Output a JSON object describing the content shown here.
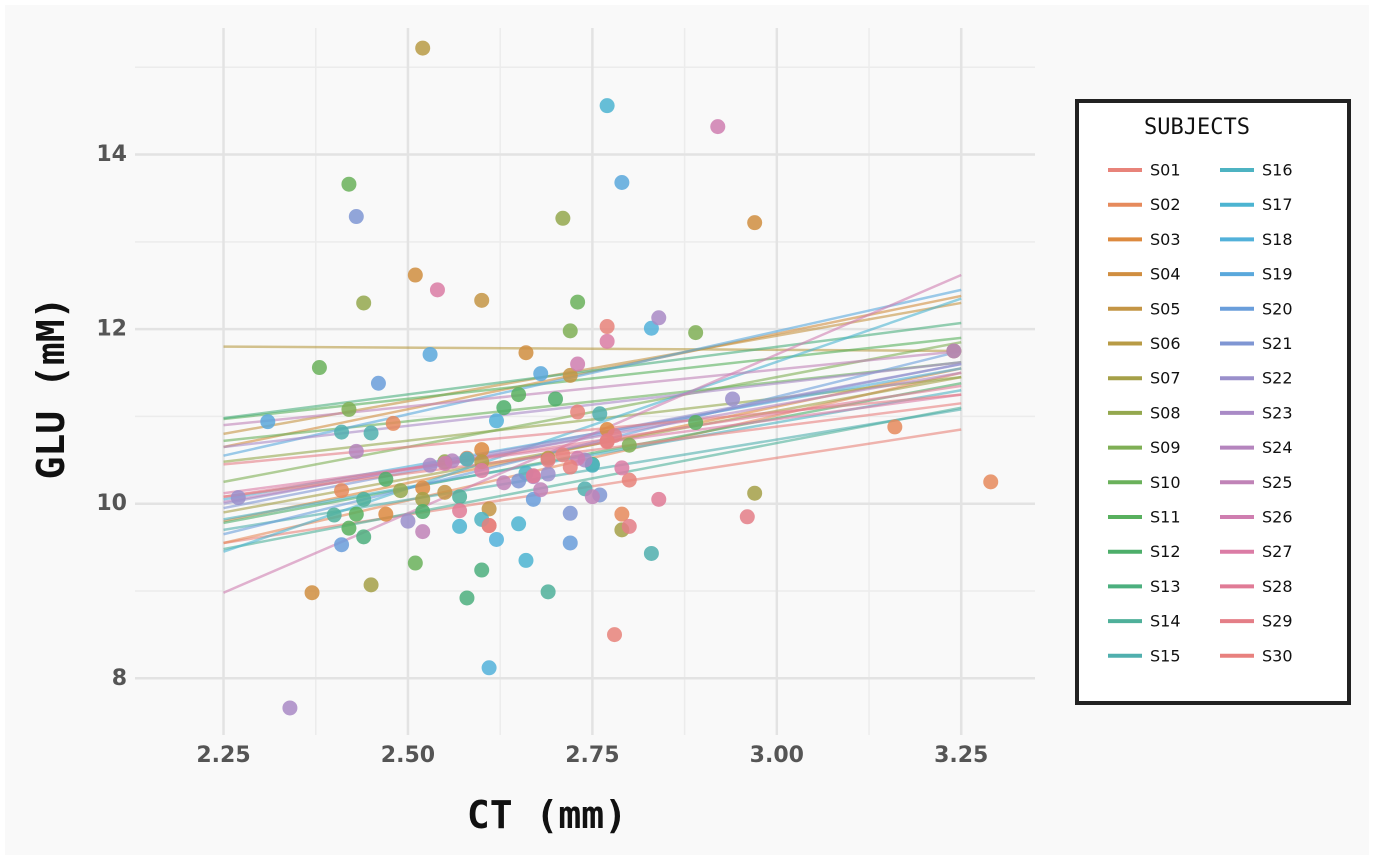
{
  "chart_data": {
    "type": "scatter",
    "title": "",
    "xlabel": "CT (mm)",
    "ylabel": "GLU (mM)",
    "xlim": [
      2.13,
      3.35
    ],
    "ylim": [
      7.35,
      15.45
    ],
    "x_ticks": [
      "2.25",
      "2.50",
      "2.75",
      "3.00",
      "3.25"
    ],
    "y_ticks": [
      "8",
      "10",
      "12",
      "14"
    ],
    "grid": true,
    "legend": {
      "title": "SUBJECTS",
      "position": "right"
    },
    "series": [
      {
        "name": "S01",
        "color": "#E8837A",
        "points": [
          [
            2.73,
            11.05
          ],
          [
            2.78,
            8.5
          ],
          [
            2.61,
            9.75
          ],
          [
            2.8,
            10.27
          ],
          [
            2.77,
            12.03
          ]
        ],
        "fit": [
          [
            2.25,
            9.55
          ],
          [
            3.25,
            10.85
          ]
        ]
      },
      {
        "name": "S02",
        "color": "#E68A5C",
        "points": [
          [
            2.48,
            10.92
          ],
          [
            2.41,
            10.15
          ],
          [
            2.58,
            10.52
          ],
          [
            2.79,
            9.88
          ],
          [
            3.29,
            10.25
          ],
          [
            3.16,
            10.88
          ]
        ],
        "fit": [
          [
            2.25,
            9.55
          ],
          [
            3.25,
            11.5
          ]
        ]
      },
      {
        "name": "S03",
        "color": "#DD8A3F",
        "points": [
          [
            2.52,
            10.18
          ],
          [
            2.6,
            10.62
          ],
          [
            2.77,
            10.85
          ],
          [
            2.47,
            9.88
          ]
        ],
        "fit": [
          [
            2.25,
            9.8
          ],
          [
            3.25,
            11.55
          ]
        ]
      },
      {
        "name": "S04",
        "color": "#D08E40",
        "points": [
          [
            2.37,
            8.98
          ],
          [
            2.51,
            12.62
          ],
          [
            2.66,
            11.73
          ],
          [
            2.97,
            13.22
          ]
        ],
        "fit": [
          [
            2.25,
            10.65
          ],
          [
            3.25,
            12.38
          ]
        ]
      },
      {
        "name": "S05",
        "color": "#C49545",
        "points": [
          [
            2.72,
            11.47
          ],
          [
            2.6,
            12.33
          ],
          [
            2.61,
            9.94
          ],
          [
            2.55,
            10.13
          ]
        ],
        "fit": [
          [
            2.25,
            10.8
          ],
          [
            3.25,
            12.3
          ]
        ]
      },
      {
        "name": "S06",
        "color": "#B89B45",
        "points": [
          [
            2.52,
            15.22
          ],
          [
            3.24,
            11.75
          ],
          [
            2.6,
            10.48
          ],
          [
            2.69,
            10.52
          ]
        ],
        "fit": [
          [
            2.25,
            11.8
          ],
          [
            3.25,
            11.75
          ]
        ]
      },
      {
        "name": "S07",
        "color": "#A5A048",
        "points": [
          [
            2.45,
            9.07
          ],
          [
            2.79,
            9.7
          ],
          [
            2.97,
            10.12
          ],
          [
            2.52,
            10.05
          ]
        ],
        "fit": [
          [
            2.25,
            9.9
          ],
          [
            3.25,
            11.45
          ]
        ]
      },
      {
        "name": "S08",
        "color": "#94A84E",
        "points": [
          [
            2.44,
            12.3
          ],
          [
            2.71,
            13.27
          ],
          [
            2.49,
            10.15
          ],
          [
            2.55,
            10.48
          ]
        ],
        "fit": [
          [
            2.25,
            10.48
          ],
          [
            3.25,
            11.45
          ]
        ]
      },
      {
        "name": "S09",
        "color": "#7FAF55",
        "points": [
          [
            2.72,
            11.98
          ],
          [
            2.89,
            11.96
          ],
          [
            2.42,
            11.08
          ],
          [
            2.8,
            10.67
          ]
        ],
        "fit": [
          [
            2.25,
            10.25
          ],
          [
            3.25,
            11.85
          ]
        ]
      },
      {
        "name": "S10",
        "color": "#6AB15B",
        "points": [
          [
            2.38,
            11.56
          ],
          [
            2.42,
            13.66
          ],
          [
            2.51,
            9.32
          ],
          [
            2.73,
            12.31
          ]
        ],
        "fit": [
          [
            2.25,
            10.72
          ],
          [
            3.25,
            11.62
          ]
        ]
      },
      {
        "name": "S11",
        "color": "#58B05E",
        "points": [
          [
            2.42,
            9.72
          ],
          [
            2.65,
            11.25
          ],
          [
            2.89,
            10.93
          ],
          [
            2.43,
            9.88
          ]
        ],
        "fit": [
          [
            2.25,
            10.97
          ],
          [
            3.25,
            11.9
          ]
        ]
      },
      {
        "name": "S12",
        "color": "#4DAE6A",
        "points": [
          [
            2.7,
            11.2
          ],
          [
            2.63,
            11.1
          ],
          [
            2.47,
            10.28
          ],
          [
            2.52,
            9.91
          ]
        ],
        "fit": [
          [
            2.25,
            9.78
          ],
          [
            3.25,
            11.38
          ]
        ]
      },
      {
        "name": "S13",
        "color": "#4CAF7E",
        "points": [
          [
            2.58,
            8.92
          ],
          [
            2.6,
            9.24
          ],
          [
            2.44,
            9.62
          ],
          [
            2.75,
            10.45
          ]
        ],
        "fit": [
          [
            2.25,
            10.98
          ],
          [
            3.25,
            12.07
          ]
        ]
      },
      {
        "name": "S14",
        "color": "#4FB09A",
        "points": [
          [
            2.4,
            9.87
          ],
          [
            2.69,
            8.99
          ],
          [
            2.44,
            10.05
          ],
          [
            2.57,
            10.08
          ]
        ],
        "fit": [
          [
            2.25,
            9.48
          ],
          [
            3.25,
            11.1
          ]
        ]
      },
      {
        "name": "S15",
        "color": "#50AFAE",
        "points": [
          [
            2.45,
            10.81
          ],
          [
            2.41,
            10.82
          ],
          [
            2.83,
            9.43
          ],
          [
            2.74,
            10.17
          ],
          [
            2.76,
            11.03
          ]
        ],
        "fit": [
          [
            2.25,
            9.7
          ],
          [
            3.25,
            11.08
          ]
        ]
      },
      {
        "name": "S16",
        "color": "#4DB3C2",
        "points": [
          [
            2.58,
            10.51
          ],
          [
            2.66,
            10.35
          ],
          [
            2.6,
            9.82
          ],
          [
            2.75,
            10.44
          ]
        ],
        "fit": [
          [
            2.25,
            9.82
          ],
          [
            3.25,
            11.3
          ]
        ]
      },
      {
        "name": "S17",
        "color": "#4CB4D1",
        "points": [
          [
            2.65,
            9.77
          ],
          [
            2.57,
            9.74
          ],
          [
            2.77,
            14.56
          ],
          [
            2.66,
            9.35
          ]
        ],
        "fit": [
          [
            2.25,
            9.45
          ],
          [
            3.25,
            12.35
          ]
        ]
      },
      {
        "name": "S18",
        "color": "#52B1DA",
        "points": [
          [
            2.62,
            10.95
          ],
          [
            2.83,
            12.01
          ],
          [
            2.61,
            8.12
          ],
          [
            2.62,
            9.59
          ]
        ],
        "fit": [
          [
            2.25,
            10.05
          ],
          [
            3.25,
            11.55
          ]
        ]
      },
      {
        "name": "S19",
        "color": "#5AA8DC",
        "points": [
          [
            2.53,
            11.71
          ],
          [
            2.68,
            11.49
          ],
          [
            2.79,
            13.68
          ],
          [
            2.31,
            10.94
          ]
        ],
        "fit": [
          [
            2.25,
            10.55
          ],
          [
            3.25,
            12.45
          ]
        ]
      },
      {
        "name": "S20",
        "color": "#6A9EDB",
        "points": [
          [
            2.46,
            11.38
          ],
          [
            2.67,
            10.05
          ],
          [
            2.72,
            9.55
          ],
          [
            2.41,
            9.53
          ]
        ],
        "fit": [
          [
            2.25,
            9.65
          ],
          [
            3.25,
            11.75
          ]
        ]
      },
      {
        "name": "S21",
        "color": "#7F96D3",
        "points": [
          [
            2.43,
            13.29
          ],
          [
            2.72,
            9.89
          ],
          [
            2.76,
            10.1
          ],
          [
            2.65,
            10.26
          ]
        ],
        "fit": [
          [
            2.25,
            9.95
          ],
          [
            3.25,
            11.6
          ]
        ]
      },
      {
        "name": "S22",
        "color": "#9A8FCB",
        "points": [
          [
            2.94,
            11.2
          ],
          [
            2.27,
            10.07
          ],
          [
            2.5,
            9.8
          ],
          [
            2.69,
            10.34
          ]
        ],
        "fit": [
          [
            2.25,
            10.0
          ],
          [
            3.25,
            11.6
          ]
        ]
      },
      {
        "name": "S23",
        "color": "#A98AC6",
        "points": [
          [
            2.34,
            7.66
          ],
          [
            2.84,
            12.13
          ],
          [
            2.74,
            10.5
          ],
          [
            2.53,
            10.44
          ]
        ],
        "fit": [
          [
            2.25,
            10.65
          ],
          [
            3.25,
            11.62
          ]
        ]
      },
      {
        "name": "S24",
        "color": "#B585BE",
        "points": [
          [
            3.24,
            11.75
          ],
          [
            2.56,
            10.49
          ],
          [
            2.67,
            10.31
          ],
          [
            2.43,
            10.6
          ]
        ],
        "fit": [
          [
            2.25,
            10.02
          ],
          [
            3.25,
            11.5
          ]
        ]
      },
      {
        "name": "S25",
        "color": "#C083B7",
        "points": [
          [
            2.75,
            10.08
          ],
          [
            2.63,
            10.24
          ],
          [
            2.52,
            9.68
          ],
          [
            2.68,
            10.16
          ]
        ],
        "fit": [
          [
            2.25,
            10.9
          ],
          [
            3.25,
            11.75
          ]
        ]
      },
      {
        "name": "S26",
        "color": "#CF7EB0",
        "points": [
          [
            2.92,
            14.32
          ],
          [
            2.73,
            11.6
          ],
          [
            2.73,
            10.52
          ],
          [
            2.55,
            10.46
          ]
        ],
        "fit": [
          [
            2.25,
            8.98
          ],
          [
            3.25,
            12.62
          ]
        ]
      },
      {
        "name": "S27",
        "color": "#DB7CA5",
        "points": [
          [
            2.54,
            12.45
          ],
          [
            2.77,
            11.86
          ],
          [
            2.6,
            10.38
          ],
          [
            2.79,
            10.41
          ]
        ],
        "fit": [
          [
            2.25,
            10.12
          ],
          [
            3.25,
            11.25
          ]
        ]
      },
      {
        "name": "S28",
        "color": "#E07B96",
        "points": [
          [
            2.84,
            10.05
          ],
          [
            2.57,
            9.92
          ],
          [
            2.77,
            10.72
          ],
          [
            2.67,
            10.32
          ]
        ],
        "fit": [
          [
            2.25,
            10.08
          ],
          [
            3.25,
            11.35
          ]
        ]
      },
      {
        "name": "S29",
        "color": "#E47E87",
        "points": [
          [
            2.96,
            9.85
          ],
          [
            2.8,
            9.74
          ],
          [
            2.78,
            10.78
          ],
          [
            2.69,
            10.5
          ]
        ],
        "fit": [
          [
            2.25,
            10.45
          ],
          [
            3.25,
            11.25
          ]
        ]
      },
      {
        "name": "S30",
        "color": "#E8817E",
        "points": [
          [
            2.61,
            9.75
          ],
          [
            2.77,
            10.71
          ],
          [
            2.71,
            10.56
          ],
          [
            2.72,
            10.42
          ]
        ],
        "fit": [
          [
            2.25,
            10.08
          ],
          [
            3.25,
            11.15
          ]
        ]
      }
    ]
  }
}
